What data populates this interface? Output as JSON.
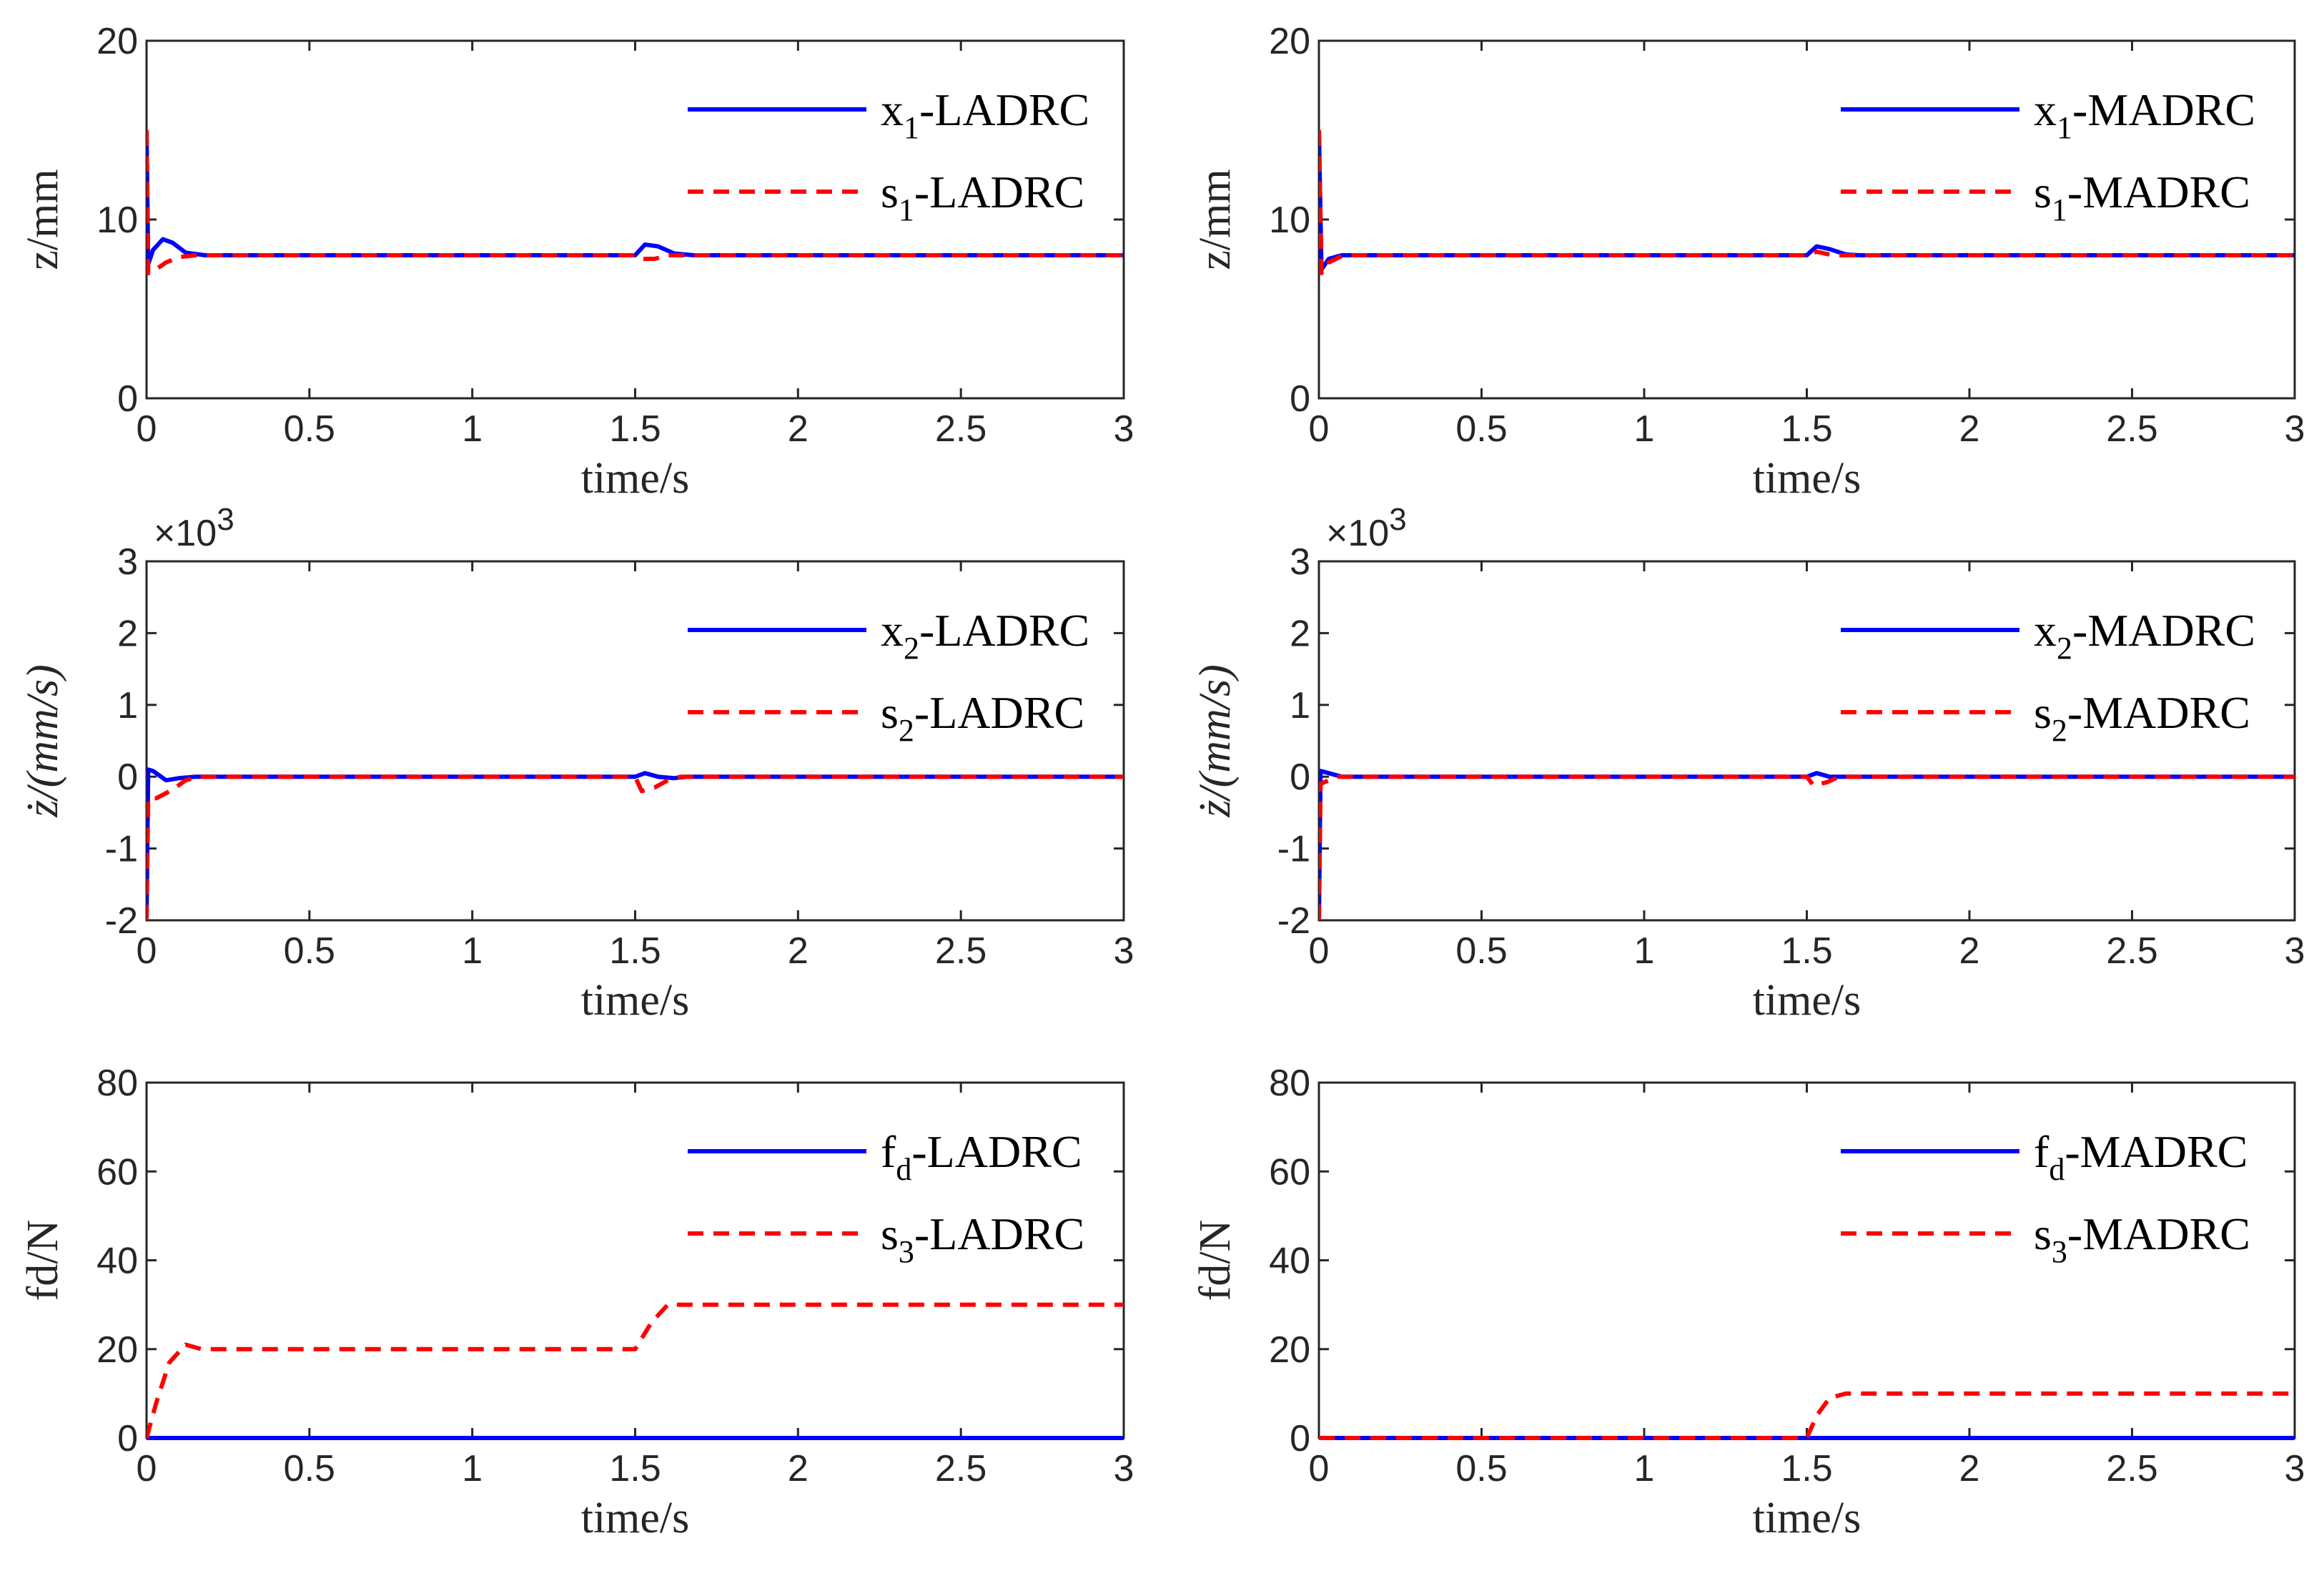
{
  "colors": {
    "solid_series": "#0000ff",
    "dashed_series": "#ff0000",
    "axes": "#262626"
  },
  "chart_data": [
    {
      "type": "line",
      "ylabel": "z/mm",
      "xlabel": "time/s",
      "xlim": [
        0,
        3
      ],
      "ylim": [
        0,
        20
      ],
      "xticks": [
        "0",
        "0.5",
        "1",
        "1.5",
        "2",
        "2.5",
        "3"
      ],
      "yticks": [
        "0",
        "10",
        "20"
      ],
      "exponent": "",
      "legend": {
        "position": "top-right"
      },
      "series": [
        {
          "name_base": "x",
          "name_sub": "1",
          "name_suffix": "-LADRC",
          "style": "solid",
          "points": [
            [
              0,
              15
            ],
            [
              0.005,
              7.5
            ],
            [
              0.02,
              8.3
            ],
            [
              0.05,
              8.9
            ],
            [
              0.08,
              8.7
            ],
            [
              0.12,
              8.15
            ],
            [
              0.18,
              8.0
            ],
            [
              1.5,
              8.0
            ],
            [
              1.53,
              8.6
            ],
            [
              1.57,
              8.5
            ],
            [
              1.62,
              8.1
            ],
            [
              1.68,
              8.0
            ],
            [
              3,
              8.0
            ]
          ]
        },
        {
          "name_base": "s",
          "name_sub": "1",
          "name_suffix": "-LADRC",
          "style": "dashed",
          "points": [
            [
              0,
              15
            ],
            [
              0.005,
              7.0
            ],
            [
              0.02,
              7.1
            ],
            [
              0.06,
              7.6
            ],
            [
              0.1,
              7.9
            ],
            [
              0.15,
              8.0
            ],
            [
              1.5,
              8.0
            ],
            [
              1.52,
              7.8
            ],
            [
              1.56,
              7.8
            ],
            [
              1.6,
              8.0
            ],
            [
              3,
              8.0
            ]
          ]
        }
      ]
    },
    {
      "type": "line",
      "ylabel": "z/mm",
      "xlabel": "time/s",
      "xlim": [
        0,
        3
      ],
      "ylim": [
        0,
        20
      ],
      "xticks": [
        "0",
        "0.5",
        "1",
        "1.5",
        "2",
        "2.5",
        "3"
      ],
      "yticks": [
        "0",
        "10",
        "20"
      ],
      "exponent": "",
      "legend": {
        "position": "top-right"
      },
      "series": [
        {
          "name_base": "x",
          "name_sub": "1",
          "name_suffix": "-MADRC",
          "style": "solid",
          "points": [
            [
              0,
              15
            ],
            [
              0.008,
              7.2
            ],
            [
              0.03,
              7.8
            ],
            [
              0.07,
              8.0
            ],
            [
              1.5,
              8.0
            ],
            [
              1.53,
              8.5
            ],
            [
              1.57,
              8.35
            ],
            [
              1.62,
              8.05
            ],
            [
              1.66,
              8.0
            ],
            [
              3,
              8.0
            ]
          ]
        },
        {
          "name_base": "s",
          "name_sub": "1",
          "name_suffix": "-MADRC",
          "style": "dashed",
          "points": [
            [
              0,
              15
            ],
            [
              0.008,
              7.0
            ],
            [
              0.03,
              7.6
            ],
            [
              0.07,
              7.95
            ],
            [
              0.1,
              8.0
            ],
            [
              1.5,
              8.0
            ],
            [
              1.53,
              8.2
            ],
            [
              1.58,
              8.0
            ],
            [
              3,
              8.0
            ]
          ]
        }
      ]
    },
    {
      "type": "line",
      "ylabel_symbol": "ż",
      "ylabel_rest": "/(mm/s)",
      "xlabel": "time/s",
      "xlim": [
        0,
        3
      ],
      "ylim": [
        -2,
        3
      ],
      "xticks": [
        "0",
        "0.5",
        "1",
        "1.5",
        "2",
        "2.5",
        "3"
      ],
      "yticks": [
        "-2",
        "-1",
        "0",
        "1",
        "2",
        "3"
      ],
      "exponent_prefix": "×10",
      "exponent_power": "3",
      "legend": {
        "position": "top-right"
      },
      "series": [
        {
          "name_base": "x",
          "name_sub": "2",
          "name_suffix": "-LADRC",
          "style": "solid",
          "points": [
            [
              0,
              -2
            ],
            [
              0.005,
              0.1
            ],
            [
              0.02,
              0.08
            ],
            [
              0.06,
              -0.05
            ],
            [
              0.1,
              -0.02
            ],
            [
              0.15,
              0.0
            ],
            [
              1.5,
              0.0
            ],
            [
              1.53,
              0.05
            ],
            [
              1.57,
              0.0
            ],
            [
              1.62,
              -0.02
            ],
            [
              1.66,
              0.0
            ],
            [
              3,
              0.0
            ]
          ]
        },
        {
          "name_base": "s",
          "name_sub": "2",
          "name_suffix": "-LADRC",
          "style": "dashed",
          "points": [
            [
              0,
              -2
            ],
            [
              0.005,
              -0.3
            ],
            [
              0.03,
              -0.3
            ],
            [
              0.08,
              -0.18
            ],
            [
              0.12,
              -0.05
            ],
            [
              0.16,
              0.0
            ],
            [
              1.5,
              0.0
            ],
            [
              1.52,
              -0.2
            ],
            [
              1.56,
              -0.15
            ],
            [
              1.6,
              -0.05
            ],
            [
              1.64,
              0.0
            ],
            [
              3,
              0.0
            ]
          ]
        }
      ]
    },
    {
      "type": "line",
      "ylabel_symbol": "ż",
      "ylabel_rest": "/(mm/s)",
      "xlabel": "time/s",
      "xlim": [
        0,
        3
      ],
      "ylim": [
        -2,
        3
      ],
      "xticks": [
        "0",
        "0.5",
        "1",
        "1.5",
        "2",
        "2.5",
        "3"
      ],
      "yticks": [
        "-2",
        "-1",
        "0",
        "1",
        "2",
        "3"
      ],
      "exponent_prefix": "×10",
      "exponent_power": "3",
      "legend": {
        "position": "top-right"
      },
      "series": [
        {
          "name_base": "x",
          "name_sub": "2",
          "name_suffix": "-MADRC",
          "style": "solid",
          "points": [
            [
              0,
              -2
            ],
            [
              0.005,
              0.08
            ],
            [
              0.03,
              0.05
            ],
            [
              0.07,
              0.0
            ],
            [
              1.5,
              0.0
            ],
            [
              1.53,
              0.05
            ],
            [
              1.57,
              0.0
            ],
            [
              3,
              0.0
            ]
          ]
        },
        {
          "name_base": "s",
          "name_sub": "2",
          "name_suffix": "-MADRC",
          "style": "dashed",
          "points": [
            [
              0,
              -2
            ],
            [
              0.005,
              -0.1
            ],
            [
              0.03,
              -0.05
            ],
            [
              0.06,
              0.0
            ],
            [
              1.5,
              0.0
            ],
            [
              1.52,
              -0.12
            ],
            [
              1.56,
              -0.08
            ],
            [
              1.6,
              0.0
            ],
            [
              3,
              0.0
            ]
          ]
        }
      ]
    },
    {
      "type": "line",
      "ylabel": "fd/N",
      "xlabel": "time/s",
      "xlim": [
        0,
        3
      ],
      "ylim": [
        0,
        80
      ],
      "xticks": [
        "0",
        "0.5",
        "1",
        "1.5",
        "2",
        "2.5",
        "3"
      ],
      "yticks": [
        "0",
        "20",
        "40",
        "60",
        "80"
      ],
      "exponent": "",
      "legend": {
        "position": "top-right"
      },
      "series": [
        {
          "name_base": "f",
          "name_sub": "d",
          "name_suffix": "-LADRC",
          "style": "solid",
          "points": [
            [
              0,
              0
            ],
            [
              3,
              0
            ]
          ]
        },
        {
          "name_base": "s",
          "name_sub": "3",
          "name_suffix": "-LADRC",
          "style": "dashed",
          "points": [
            [
              0,
              0
            ],
            [
              0.03,
              8
            ],
            [
              0.07,
              17
            ],
            [
              0.12,
              21
            ],
            [
              0.17,
              20
            ],
            [
              1.5,
              20
            ],
            [
              1.55,
              26
            ],
            [
              1.6,
              30
            ],
            [
              3,
              30
            ]
          ]
        }
      ]
    },
    {
      "type": "line",
      "ylabel": "fd/N",
      "xlabel": "time/s",
      "xlim": [
        0,
        3
      ],
      "ylim": [
        0,
        80
      ],
      "xticks": [
        "0",
        "0.5",
        "1",
        "1.5",
        "2",
        "2.5",
        "3"
      ],
      "yticks": [
        "0",
        "20",
        "40",
        "60",
        "80"
      ],
      "exponent": "",
      "legend": {
        "position": "top-right"
      },
      "series": [
        {
          "name_base": "f",
          "name_sub": "d",
          "name_suffix": "-MADRC",
          "style": "solid",
          "points": [
            [
              0,
              0
            ],
            [
              3,
              0
            ]
          ]
        },
        {
          "name_base": "s",
          "name_sub": "3",
          "name_suffix": "-MADRC",
          "style": "dashed",
          "points": [
            [
              0,
              0
            ],
            [
              1.5,
              0
            ],
            [
              1.53,
              5
            ],
            [
              1.57,
              9
            ],
            [
              1.62,
              10
            ],
            [
              3,
              10
            ]
          ]
        }
      ]
    }
  ]
}
